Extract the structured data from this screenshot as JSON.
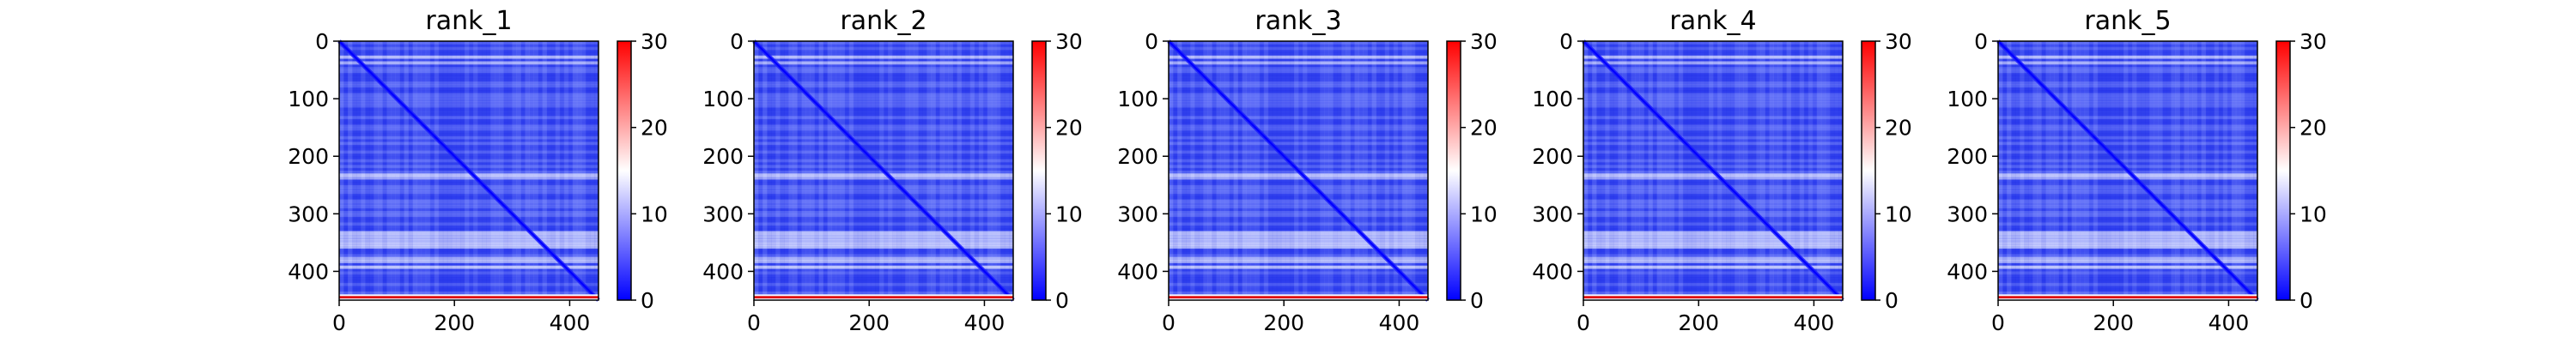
{
  "chart_data": [
    {
      "type": "heatmap",
      "title": "rank_1",
      "xlim": [
        0,
        450
      ],
      "ylim": [
        450,
        0
      ],
      "x_ticks": [
        0,
        200,
        400
      ],
      "y_ticks": [
        0,
        100,
        200,
        300,
        400
      ],
      "colorbar": {
        "min": 0,
        "max": 30,
        "ticks": [
          0,
          10,
          20,
          30
        ],
        "colormap": "bwr"
      },
      "values_description_free": true,
      "grid": false
    },
    {
      "type": "heatmap",
      "title": "rank_2",
      "xlim": [
        0,
        450
      ],
      "ylim": [
        450,
        0
      ],
      "x_ticks": [
        0,
        200,
        400
      ],
      "y_ticks": [
        0,
        100,
        200,
        300,
        400
      ],
      "colorbar": {
        "min": 0,
        "max": 30,
        "ticks": [
          0,
          10,
          20,
          30
        ],
        "colormap": "bwr"
      },
      "grid": false
    },
    {
      "type": "heatmap",
      "title": "rank_3",
      "xlim": [
        0,
        450
      ],
      "ylim": [
        450,
        0
      ],
      "x_ticks": [
        0,
        200,
        400
      ],
      "y_ticks": [
        0,
        100,
        200,
        300,
        400
      ],
      "colorbar": {
        "min": 0,
        "max": 30,
        "ticks": [
          0,
          10,
          20,
          30
        ],
        "colormap": "bwr"
      },
      "grid": false
    },
    {
      "type": "heatmap",
      "title": "rank_4",
      "xlim": [
        0,
        450
      ],
      "ylim": [
        450,
        0
      ],
      "x_ticks": [
        0,
        200,
        400
      ],
      "y_ticks": [
        0,
        100,
        200,
        300,
        400
      ],
      "colorbar": {
        "min": 0,
        "max": 30,
        "ticks": [
          0,
          10,
          20,
          30
        ],
        "colormap": "bwr"
      },
      "grid": false
    },
    {
      "type": "heatmap",
      "title": "rank_5",
      "xlim": [
        0,
        450
      ],
      "ylim": [
        450,
        0
      ],
      "x_ticks": [
        0,
        200,
        400
      ],
      "y_ticks": [
        0,
        100,
        200,
        300,
        400
      ],
      "colorbar": {
        "min": 0,
        "max": 30,
        "ticks": [
          0,
          10,
          20,
          30
        ],
        "colormap": "bwr"
      },
      "grid": false
    }
  ],
  "colors": {
    "low": "#0000ff",
    "mid": "#ffffff",
    "high": "#ff0000"
  }
}
